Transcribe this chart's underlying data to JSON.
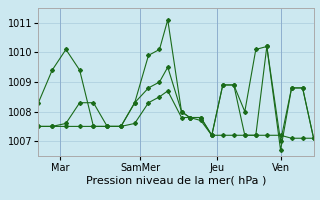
{
  "title": "",
  "xlabel": "Pression niveau de la mer( hPa )",
  "ylabel": "",
  "ylim": [
    1006.5,
    1011.5
  ],
  "yticks": [
    1007,
    1008,
    1009,
    1010,
    1011
  ],
  "bg_color": "#cce8f0",
  "grid_color": "#aaccdd",
  "line_color": "#1a6b1a",
  "x_tick_labels": [
    "Mar",
    "SamMer",
    "Jeu",
    "Ven"
  ],
  "x_tick_positions": [
    0.08,
    0.37,
    0.65,
    0.88
  ],
  "series": [
    [
      0.0,
      1008.3,
      0.05,
      1009.4,
      0.1,
      1010.1,
      0.15,
      1009.4,
      0.2,
      1007.5,
      0.25,
      1007.5,
      0.3,
      1007.5,
      0.35,
      1008.3,
      0.4,
      1009.9,
      0.44,
      1010.1,
      0.47,
      1011.1,
      0.52,
      1008.0,
      0.55,
      1007.8,
      0.59,
      1007.8,
      0.63,
      1007.2,
      0.67,
      1008.9,
      0.71,
      1008.9,
      0.75,
      1008.0,
      0.79,
      1010.1,
      0.83,
      1010.2,
      0.88,
      1006.7,
      0.92,
      1008.8,
      0.96,
      1008.8,
      1.0,
      1007.1
    ],
    [
      0.0,
      1007.5,
      0.05,
      1007.5,
      0.1,
      1007.5,
      0.15,
      1007.5,
      0.2,
      1007.5,
      0.25,
      1007.5,
      0.3,
      1007.5,
      0.35,
      1007.6,
      0.4,
      1008.3,
      0.44,
      1008.5,
      0.47,
      1008.7,
      0.52,
      1007.8,
      0.55,
      1007.8,
      0.59,
      1007.7,
      0.63,
      1007.2,
      0.67,
      1007.2,
      0.71,
      1007.2,
      0.75,
      1007.2,
      0.79,
      1007.2,
      0.83,
      1007.2,
      0.88,
      1007.2,
      0.92,
      1007.1,
      0.96,
      1007.1,
      1.0,
      1007.1
    ],
    [
      0.0,
      1007.5,
      0.05,
      1007.5,
      0.1,
      1007.6,
      0.15,
      1008.3,
      0.2,
      1008.3,
      0.25,
      1007.5,
      0.3,
      1007.5,
      0.35,
      1008.3,
      0.4,
      1008.8,
      0.44,
      1009.0,
      0.47,
      1009.5,
      0.52,
      1008.0,
      0.55,
      1007.8,
      0.59,
      1007.8,
      0.63,
      1007.2,
      0.67,
      1008.9,
      0.71,
      1008.9,
      0.75,
      1007.2,
      0.79,
      1007.2,
      0.83,
      1010.2,
      0.88,
      1007.0,
      0.92,
      1008.8,
      0.96,
      1008.8,
      1.0,
      1007.1
    ]
  ]
}
